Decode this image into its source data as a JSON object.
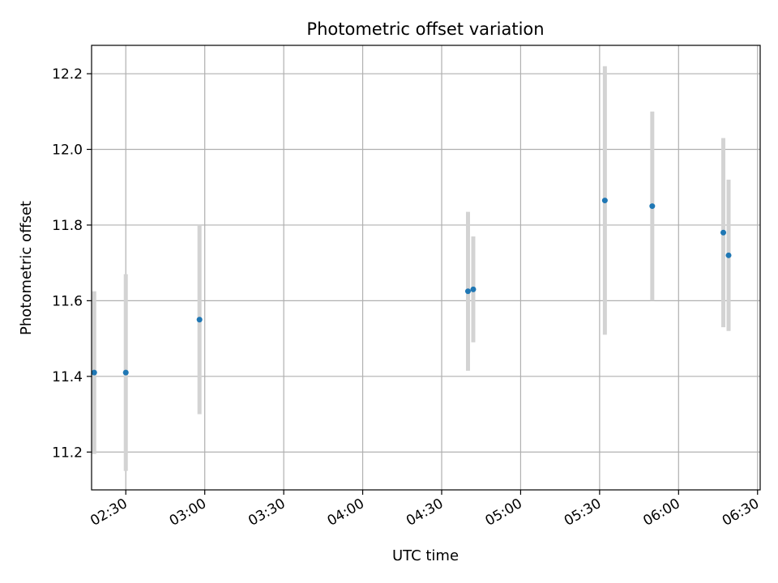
{
  "chart_data": {
    "type": "scatter",
    "title": "Photometric offset variation",
    "xlabel": "UTC time",
    "ylabel": "Photometric offset",
    "x_tick_labels": [
      "02:30",
      "03:00",
      "03:30",
      "04:00",
      "04:30",
      "05:00",
      "05:30",
      "06:00",
      "06:30"
    ],
    "y_ticks": [
      11.2,
      11.4,
      11.6,
      11.8,
      12.0,
      12.2
    ],
    "xlim": [
      "02:17",
      "06:31"
    ],
    "ylim": [
      11.1,
      12.275
    ],
    "grid": true,
    "marker_color": "#1f77b4",
    "errorbar_color": "#d3d3d3",
    "points": [
      {
        "x": "02:18",
        "y": 11.41,
        "err": 0.215
      },
      {
        "x": "02:30",
        "y": 11.41,
        "err": 0.26
      },
      {
        "x": "02:58",
        "y": 11.55,
        "err": 0.25
      },
      {
        "x": "04:40",
        "y": 11.625,
        "err": 0.21
      },
      {
        "x": "04:42",
        "y": 11.63,
        "err": 0.14
      },
      {
        "x": "05:32",
        "y": 11.865,
        "err": 0.355
      },
      {
        "x": "05:50",
        "y": 11.85,
        "err": 0.25
      },
      {
        "x": "06:17",
        "y": 11.78,
        "err": 0.25
      },
      {
        "x": "06:19",
        "y": 11.72,
        "err": 0.2
      }
    ]
  }
}
